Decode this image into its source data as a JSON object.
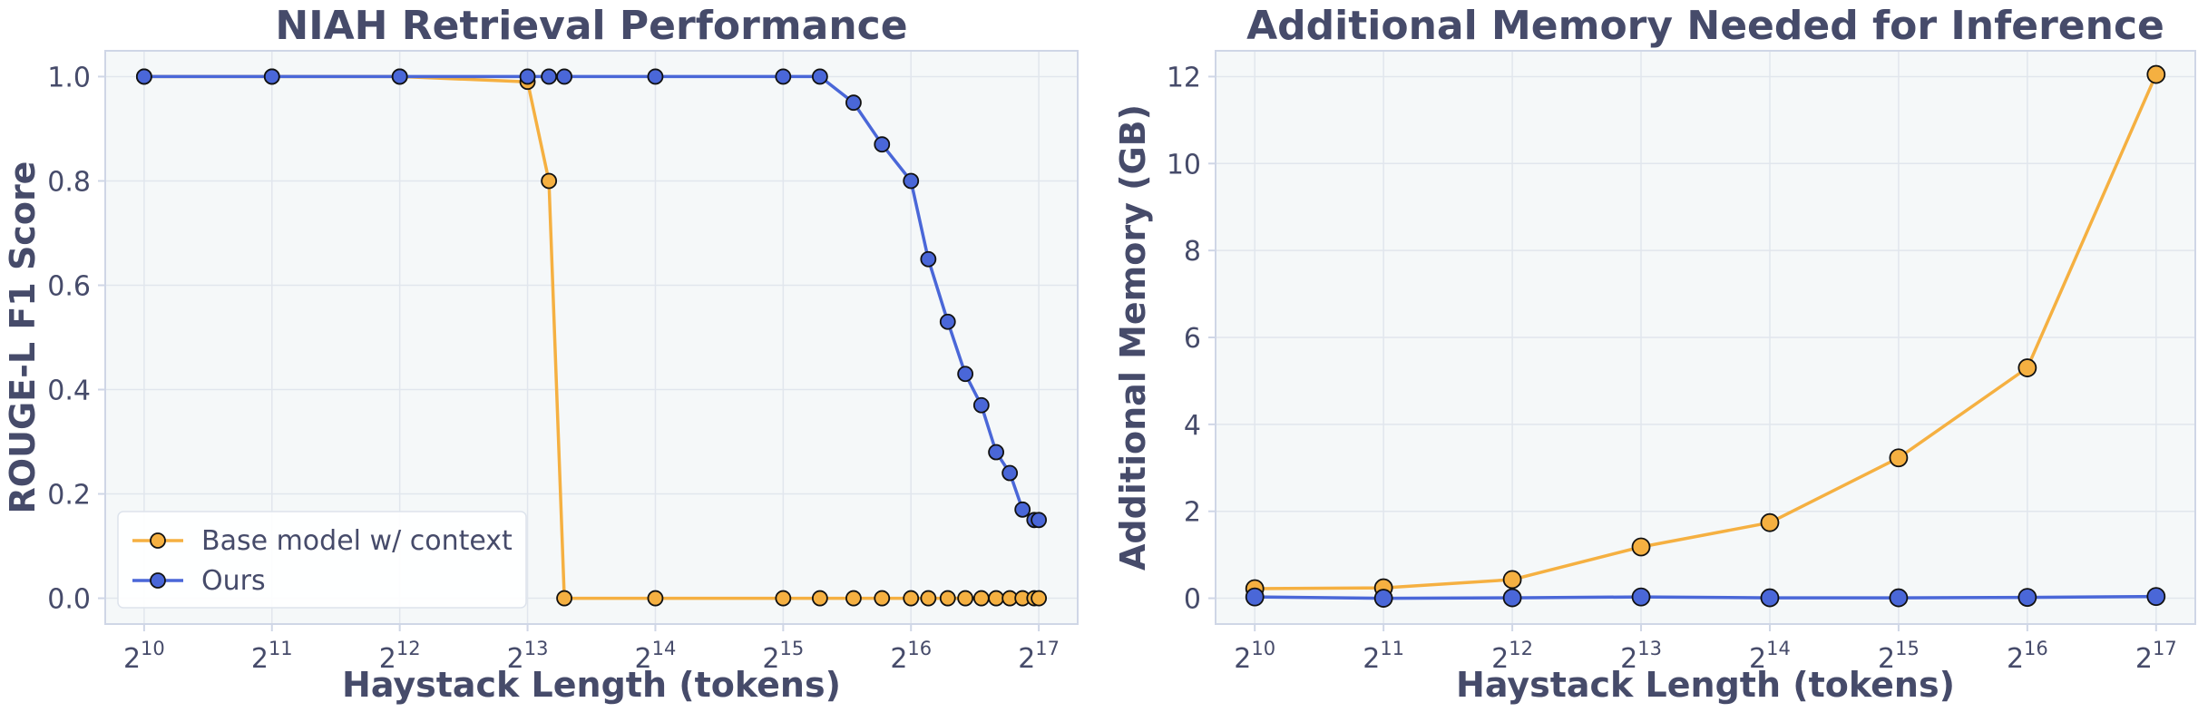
{
  "colors": {
    "base": "#f5b041",
    "ours": "#4a67d8",
    "panel_bg": "#f5f8f9",
    "grid": "#e1e6ed",
    "frame": "#cfd6e6",
    "text": "#464b6a"
  },
  "chart_data": [
    {
      "type": "line",
      "title": "NIAH Retrieval Performance",
      "xlabel": "Haystack Length (tokens)",
      "ylabel": "ROUGE-L F1 Score",
      "x_scale": "log2",
      "xlim": [
        1024,
        131072
      ],
      "ylim": [
        0.0,
        1.0
      ],
      "x_ticks": [
        {
          "value": 1024,
          "base": "2",
          "exp": "10"
        },
        {
          "value": 2048,
          "base": "2",
          "exp": "11"
        },
        {
          "value": 4096,
          "base": "2",
          "exp": "12"
        },
        {
          "value": 8192,
          "base": "2",
          "exp": "13"
        },
        {
          "value": 16384,
          "base": "2",
          "exp": "14"
        },
        {
          "value": 32768,
          "base": "2",
          "exp": "15"
        },
        {
          "value": 65536,
          "base": "2",
          "exp": "16"
        },
        {
          "value": 131072,
          "base": "2",
          "exp": "17"
        }
      ],
      "y_ticks": [
        "0.0",
        "0.2",
        "0.4",
        "0.6",
        "0.8",
        "1.0"
      ],
      "grid": true,
      "legend": {
        "placement": "lower-left"
      },
      "series": [
        {
          "name": "Base model w/ context",
          "color_key": "base",
          "x": [
            1024,
            2048,
            4096,
            8192,
            9200,
            10000,
            16384,
            32768,
            40000,
            48000,
            56000,
            65536,
            72000,
            80000,
            88000,
            96000,
            104000,
            112000,
            120000,
            128000,
            131072
          ],
          "y": [
            1.0,
            1.0,
            1.0,
            0.99,
            0.8,
            0.0,
            0.0,
            0.0,
            0.0,
            0.0,
            0.0,
            0.0,
            0.0,
            0.0,
            0.0,
            0.0,
            0.0,
            0.0,
            0.0,
            0.0,
            0.0
          ]
        },
        {
          "name": "Ours",
          "color_key": "ours",
          "x": [
            1024,
            2048,
            4096,
            8192,
            9200,
            10000,
            16384,
            32768,
            40000,
            48000,
            56000,
            65536,
            72000,
            80000,
            88000,
            96000,
            104000,
            112000,
            120000,
            128000,
            131072
          ],
          "y": [
            1.0,
            1.0,
            1.0,
            1.0,
            1.0,
            1.0,
            1.0,
            1.0,
            1.0,
            0.95,
            0.87,
            0.8,
            0.65,
            0.53,
            0.43,
            0.37,
            0.28,
            0.24,
            0.17,
            0.15,
            0.15
          ]
        }
      ]
    },
    {
      "type": "line",
      "title": "Additional Memory Needed for Inference",
      "xlabel": "Haystack Length (tokens)",
      "ylabel": "Additional Memory (GB)",
      "x_scale": "log2",
      "xlim": [
        1024,
        131072
      ],
      "ylim": [
        0,
        12
      ],
      "x_ticks": [
        {
          "value": 1024,
          "base": "2",
          "exp": "10"
        },
        {
          "value": 2048,
          "base": "2",
          "exp": "11"
        },
        {
          "value": 4096,
          "base": "2",
          "exp": "12"
        },
        {
          "value": 8192,
          "base": "2",
          "exp": "13"
        },
        {
          "value": 16384,
          "base": "2",
          "exp": "14"
        },
        {
          "value": 32768,
          "base": "2",
          "exp": "15"
        },
        {
          "value": 65536,
          "base": "2",
          "exp": "16"
        },
        {
          "value": 131072,
          "base": "2",
          "exp": "17"
        }
      ],
      "y_ticks": [
        "0",
        "2",
        "4",
        "6",
        "8",
        "10",
        "12"
      ],
      "grid": true,
      "series": [
        {
          "color_key": "base",
          "x": [
            1024,
            2048,
            4096,
            8192,
            16384,
            32768,
            65536,
            131072
          ],
          "y": [
            0.22,
            0.24,
            0.43,
            1.18,
            1.74,
            3.23,
            5.3,
            12.05
          ]
        },
        {
          "color_key": "ours",
          "x": [
            1024,
            2048,
            4096,
            8192,
            16384,
            32768,
            65536,
            131072
          ],
          "y": [
            0.03,
            0.0,
            0.01,
            0.03,
            0.01,
            0.01,
            0.02,
            0.04
          ]
        }
      ]
    }
  ]
}
